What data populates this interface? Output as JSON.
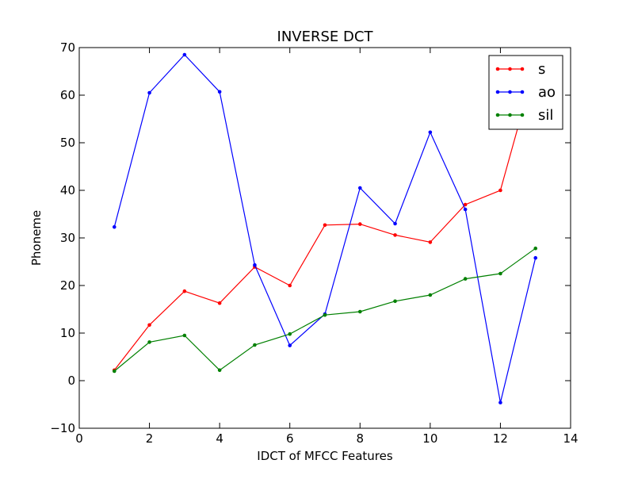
{
  "chart_data": {
    "type": "line",
    "title": "INVERSE DCT",
    "xlabel": "IDCT of MFCC Features",
    "ylabel": "Phoneme",
    "xlim": [
      0,
      14
    ],
    "ylim": [
      -10,
      70
    ],
    "x_ticks": [
      0,
      2,
      4,
      6,
      8,
      10,
      12,
      14
    ],
    "y_ticks": [
      -10,
      0,
      10,
      20,
      30,
      40,
      50,
      60,
      70
    ],
    "x_tick_labels": [
      "0",
      "2",
      "4",
      "6",
      "8",
      "10",
      "12",
      "14"
    ],
    "y_tick_labels": [
      "−10",
      "0",
      "10",
      "20",
      "30",
      "40",
      "50",
      "60",
      "70"
    ],
    "grid": false,
    "legend_position": "upper right",
    "x": [
      1,
      2,
      3,
      4,
      5,
      6,
      7,
      8,
      9,
      10,
      11,
      12,
      13
    ],
    "series": [
      {
        "name": "s",
        "color": "#ff0000",
        "values": [
          2.2,
          11.7,
          18.8,
          16.3,
          23.9,
          20.0,
          32.7,
          32.9,
          30.6,
          29.1,
          37.0,
          40.0,
          66.5
        ]
      },
      {
        "name": "ao",
        "color": "#0000ff",
        "values": [
          32.3,
          60.5,
          68.5,
          60.7,
          24.3,
          7.4,
          14.0,
          40.5,
          33.0,
          52.2,
          36.0,
          -4.6,
          25.8
        ]
      },
      {
        "name": "sil",
        "color": "#008000",
        "values": [
          2.0,
          8.1,
          9.5,
          2.2,
          7.5,
          9.8,
          13.8,
          14.5,
          16.7,
          18.0,
          21.4,
          22.5,
          27.8
        ]
      }
    ]
  }
}
